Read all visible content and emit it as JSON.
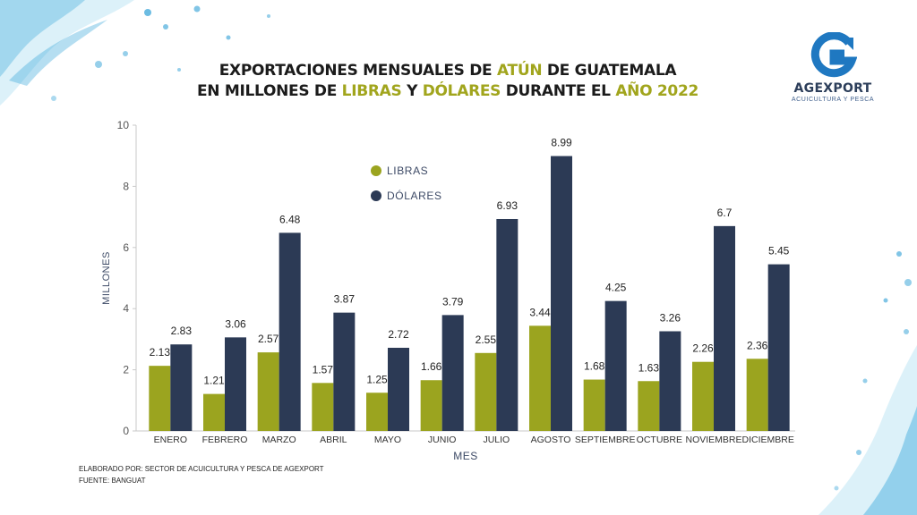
{
  "header": {
    "title_line1": [
      {
        "text": "EXPORTACIONES MENSUALES DE ",
        "hl": false
      },
      {
        "text": "ATÚN",
        "hl": true
      },
      {
        "text": " DE GUATEMALA",
        "hl": false
      }
    ],
    "title_line2": [
      {
        "text": "EN MILLONES DE ",
        "hl": false
      },
      {
        "text": "LIBRAS",
        "hl": true
      },
      {
        "text": " Y ",
        "hl": false
      },
      {
        "text": "DÓLARES",
        "hl": true
      },
      {
        "text": " DURANTE EL ",
        "hl": false
      },
      {
        "text": "AÑO 2022",
        "hl": true
      }
    ]
  },
  "logo": {
    "name": "AGEXPORT",
    "tagline": "ACUICULTURA Y PESCA"
  },
  "footer": {
    "line1": "ELABORADO POR: SECTOR DE ACUICULTURA Y PESCA DE AGEXPORT",
    "line2": "FUENTE:  BANGUAT"
  },
  "colors": {
    "libras": "#9ba41f",
    "dolares": "#2c3a55",
    "title_highlight": "#a1a51d",
    "logo_blue": "#1f78c1"
  },
  "chart_data": {
    "type": "bar",
    "title": "",
    "xlabel": "MES",
    "ylabel": "MILLONES",
    "ylim": [
      0,
      10
    ],
    "yticks": [
      0,
      2,
      4,
      6,
      8,
      10
    ],
    "grid": false,
    "legend_position": "top-left",
    "categories": [
      "ENERO",
      "FEBRERO",
      "MARZO",
      "ABRIL",
      "MAYO",
      "JUNIO",
      "JULIO",
      "AGOSTO",
      "SEPTIEMBRE",
      "OCTUBRE",
      "NOVIEMBRE",
      "DICIEMBRE"
    ],
    "series": [
      {
        "name": "LIBRAS",
        "color": "#9ba41f",
        "values": [
          2.13,
          1.21,
          2.57,
          1.57,
          1.25,
          1.66,
          2.55,
          3.44,
          1.68,
          1.63,
          2.26,
          2.36
        ]
      },
      {
        "name": "DÓLARES",
        "color": "#2c3a55",
        "values": [
          2.83,
          3.06,
          6.48,
          3.87,
          2.72,
          3.79,
          6.93,
          8.99,
          4.25,
          3.26,
          6.7,
          5.45
        ]
      }
    ]
  }
}
